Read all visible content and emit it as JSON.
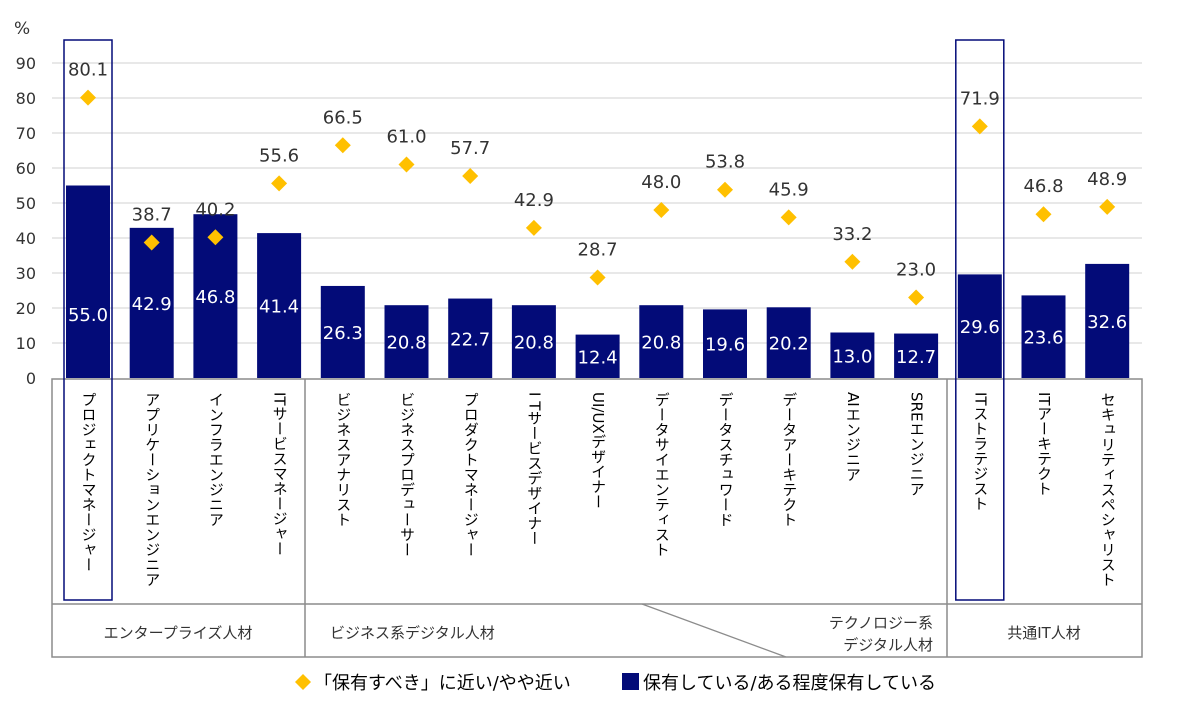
{
  "chart_data": {
    "type": "bar",
    "ylabel": "%",
    "ylim": [
      0,
      90
    ],
    "yticks": [
      0,
      10,
      20,
      30,
      40,
      50,
      60,
      70,
      80,
      90
    ],
    "grid": true,
    "legend_placement": "bottom",
    "categories": [
      "プロジェクトマネージャー",
      "アプリケーションエンジニア",
      "インフラエンジニア",
      "ITサービスマネージャー",
      "ビジネスアナリスト",
      "ビジネスプロデューサー",
      "プロダクトマネージャー",
      "I Tサービスデザイナー",
      "UI/UXデザイナー",
      "データサイエンティスト",
      "データスチュワード",
      "データアーキテクト",
      "AIエンジニア",
      "SREエンジニア",
      "ITストラテジスト",
      "ITアーキテクト",
      "セキュリティスペシャリスト"
    ],
    "series": [
      {
        "name": "「保有すべき」に近い/やや近い",
        "type": "scatter",
        "marker": "diamond",
        "color": "#FFC000",
        "values": [
          80.1,
          38.7,
          40.2,
          55.6,
          66.5,
          61.0,
          57.7,
          42.9,
          28.7,
          48.0,
          53.8,
          45.9,
          33.2,
          23.0,
          71.9,
          46.8,
          48.9
        ]
      },
      {
        "name": "保有している/ある程度保有している",
        "type": "bar",
        "color": "#030B78",
        "values": [
          55.0,
          42.9,
          46.8,
          41.4,
          26.3,
          20.8,
          22.7,
          20.8,
          12.4,
          20.8,
          19.6,
          20.2,
          13.0,
          12.7,
          29.6,
          23.6,
          32.6
        ]
      }
    ],
    "groups": [
      {
        "label": "エンタープライズ人材",
        "categories": [
          0,
          1,
          2,
          3
        ]
      },
      {
        "label": "ビジネス系デジタル人材",
        "categories": [
          4,
          5,
          6,
          7,
          8,
          9,
          10,
          11,
          12,
          13
        ]
      },
      {
        "label": "テクノロジー系\nデジタル人材",
        "categories": [
          4,
          5,
          6,
          7,
          8,
          9,
          10,
          11,
          12,
          13
        ]
      },
      {
        "label": "共通IT人材",
        "categories": [
          14,
          15,
          16
        ]
      }
    ],
    "highlighted": [
      0,
      14
    ]
  }
}
